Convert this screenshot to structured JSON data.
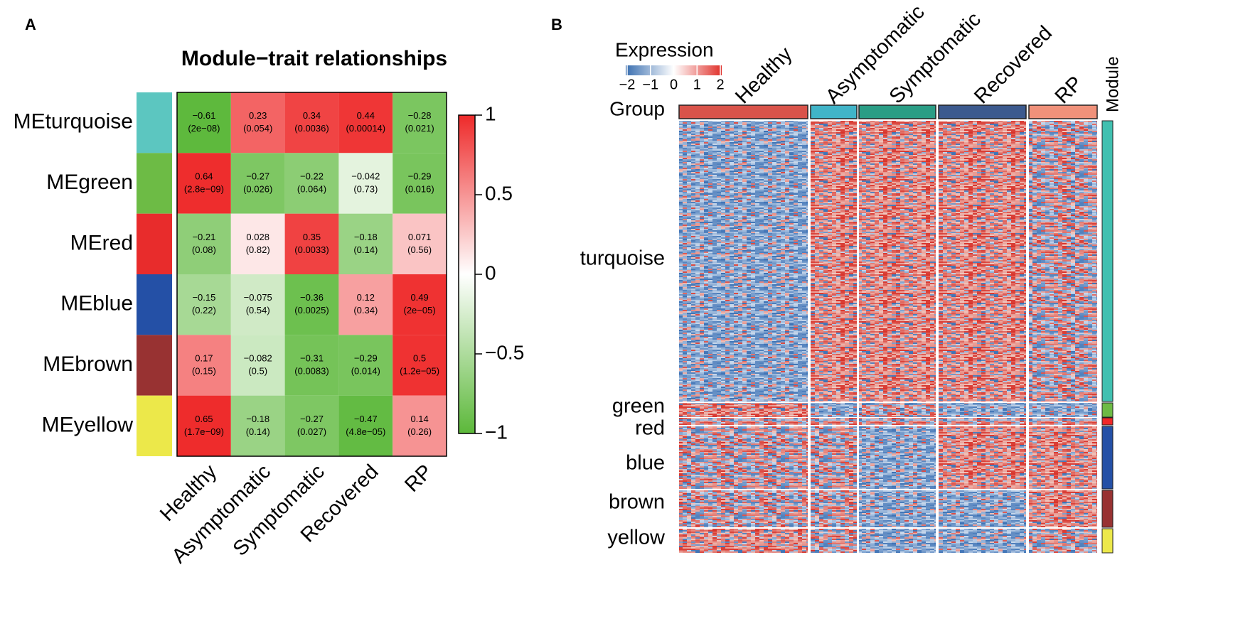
{
  "panel_labels": [
    "A",
    "B"
  ],
  "chart_data": {
    "type": "heatmap",
    "title": "Module−trait relationships",
    "rows": [
      "MEturquoise",
      "MEgreen",
      "MEred",
      "MEblue",
      "MEbrown",
      "MEyellow"
    ],
    "row_colors": [
      "#5cc6c0",
      "#6dbb45",
      "#e82c2c",
      "#2450a6",
      "#983232",
      "#ece84a"
    ],
    "categories": [
      "Healthy",
      "Asymptomatic",
      "Symptomatic",
      "Recovered",
      "RP"
    ],
    "values": [
      [
        -0.61,
        0.23,
        0.34,
        0.44,
        -0.28
      ],
      [
        0.64,
        -0.27,
        -0.22,
        -0.042,
        -0.29
      ],
      [
        -0.21,
        0.028,
        0.35,
        -0.18,
        0.071
      ],
      [
        -0.15,
        -0.075,
        -0.36,
        0.12,
        0.49
      ],
      [
        0.17,
        -0.082,
        -0.31,
        -0.29,
        0.5
      ],
      [
        0.65,
        -0.18,
        -0.27,
        -0.47,
        0.14
      ]
    ],
    "value_labels": [
      [
        "−0.61",
        "0.23",
        "0.34",
        "0.44",
        "−0.28"
      ],
      [
        "0.64",
        "−0.27",
        "−0.22",
        "−0.042",
        "−0.29"
      ],
      [
        "−0.21",
        "0.028",
        "0.35",
        "−0.18",
        "0.071"
      ],
      [
        "−0.15",
        "−0.075",
        "−0.36",
        "0.12",
        "0.49"
      ],
      [
        "0.17",
        "−0.082",
        "−0.31",
        "−0.29",
        "0.5"
      ],
      [
        "0.65",
        "−0.18",
        "−0.27",
        "−0.47",
        "0.14"
      ]
    ],
    "p_value_labels": [
      [
        "(2e−08)",
        "(0.054)",
        "(0.0036)",
        "(0.00014)",
        "(0.021)"
      ],
      [
        "(2.8e−09)",
        "(0.026)",
        "(0.064)",
        "(0.73)",
        "(0.016)"
      ],
      [
        "(0.08)",
        "(0.82)",
        "(0.0033)",
        "(0.14)",
        "(0.56)"
      ],
      [
        "(0.22)",
        "(0.54)",
        "(0.0025)",
        "(0.34)",
        "(2e−05)"
      ],
      [
        "(0.15)",
        "(0.5)",
        "(0.0083)",
        "(0.014)",
        "(1.2e−05)"
      ],
      [
        "(1.7e−09)",
        "(0.14)",
        "(0.027)",
        "(4.8e−05)",
        "(0.26)"
      ]
    ],
    "colors": {
      "low": "#5cb83a",
      "mid": "#ffffff",
      "high": "#ee2a2a"
    },
    "zlim": [
      -1,
      1
    ],
    "zticks": [
      1,
      0.5,
      0,
      {
        "value": -0.5,
        "label": "−0.5"
      },
      {
        "value": -1,
        "label": "−1"
      }
    ]
  },
  "panel_b": {
    "legend_title": "Expression",
    "legend_ticks": [
      {
        "value": -2,
        "label": "−2"
      },
      {
        "value": -1,
        "label": "−1"
      },
      0,
      1,
      2
    ],
    "legend_colors": [
      "#3a6fb0",
      "#ffffff",
      "#e0302a"
    ],
    "group_title": "Group",
    "groups": [
      "Healthy",
      "Asymptomatic",
      "Symptomatic",
      "Recovered",
      "RP"
    ],
    "group_colors": [
      "#d9534a",
      "#40b4c8",
      "#2a9d85",
      "#3c5a8e",
      "#f0917a"
    ],
    "module_title": "Module",
    "modules": [
      "turquoise",
      "green",
      "red",
      "blue",
      "brown",
      "yellow"
    ],
    "module_colors": [
      "#40c0b0",
      "#6dbb45",
      "#f02828",
      "#2450a6",
      "#983232",
      "#ece84a"
    ]
  }
}
